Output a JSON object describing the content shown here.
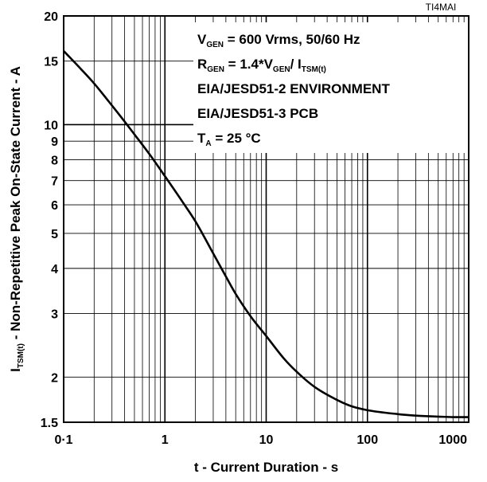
{
  "figure_tag": "TI4MAI",
  "chart_data": {
    "type": "line",
    "xlabel": "t - Current Duration - s",
    "ylabel_main": "I",
    "ylabel_sub": "TSM(t)",
    "ylabel_rest": " - Non-Repetitive Peak On-State Current - A",
    "x_scale": "log",
    "y_scale": "log",
    "xlim": [
      0.1,
      1000
    ],
    "ylim": [
      1.5,
      20
    ],
    "grid": true,
    "x_ticks": [
      {
        "value": 0.1,
        "label": "0·1"
      },
      {
        "value": 1,
        "label": "1"
      },
      {
        "value": 10,
        "label": "10"
      },
      {
        "value": 100,
        "label": "100"
      },
      {
        "value": 1000,
        "label": "1000"
      }
    ],
    "y_ticks": [
      {
        "value": 1.5,
        "label": "1.5"
      },
      {
        "value": 2,
        "label": "2"
      },
      {
        "value": 3,
        "label": "3"
      },
      {
        "value": 4,
        "label": "4"
      },
      {
        "value": 5,
        "label": "5"
      },
      {
        "value": 6,
        "label": "6"
      },
      {
        "value": 7,
        "label": "7"
      },
      {
        "value": 8,
        "label": "8"
      },
      {
        "value": 9,
        "label": "9"
      },
      {
        "value": 10,
        "label": "10"
      },
      {
        "value": 15,
        "label": "15"
      },
      {
        "value": 20,
        "label": "20"
      }
    ],
    "series": [
      {
        "x": [
          0.1,
          0.15,
          0.2,
          0.3,
          0.4,
          0.5,
          0.7,
          1,
          1.5,
          2,
          3,
          4,
          5,
          7,
          10,
          15,
          20,
          30,
          50,
          70,
          100,
          200,
          300,
          500,
          700,
          1000
        ],
        "y": [
          16,
          14.2,
          13,
          11.3,
          10.2,
          9.4,
          8.3,
          7.2,
          6.1,
          5.4,
          4.4,
          3.8,
          3.4,
          2.95,
          2.6,
          2.25,
          2.07,
          1.88,
          1.73,
          1.66,
          1.62,
          1.58,
          1.565,
          1.555,
          1.55,
          1.55
        ]
      }
    ],
    "annotation": [
      {
        "parts": [
          {
            "t": "V"
          },
          {
            "t": "GEN",
            "sub": true
          },
          {
            "t": " = 600 Vrms, 50/60 Hz"
          }
        ]
      },
      {
        "parts": [
          {
            "t": "R"
          },
          {
            "t": "GEN",
            "sub": true
          },
          {
            "t": " = 1.4*V"
          },
          {
            "t": "GEN",
            "sub": true
          },
          {
            "t": "/ I"
          },
          {
            "t": "TSM(t)",
            "sub": true
          }
        ]
      },
      {
        "parts": [
          {
            "t": "EIA/JESD51-2 ENVIRONMENT"
          }
        ]
      },
      {
        "parts": [
          {
            "t": "EIA/JESD51-3 PCB"
          }
        ]
      },
      {
        "parts": [
          {
            "t": "T"
          },
          {
            "t": "A",
            "sub": true
          },
          {
            "t": " = 25 °C"
          }
        ]
      }
    ]
  }
}
